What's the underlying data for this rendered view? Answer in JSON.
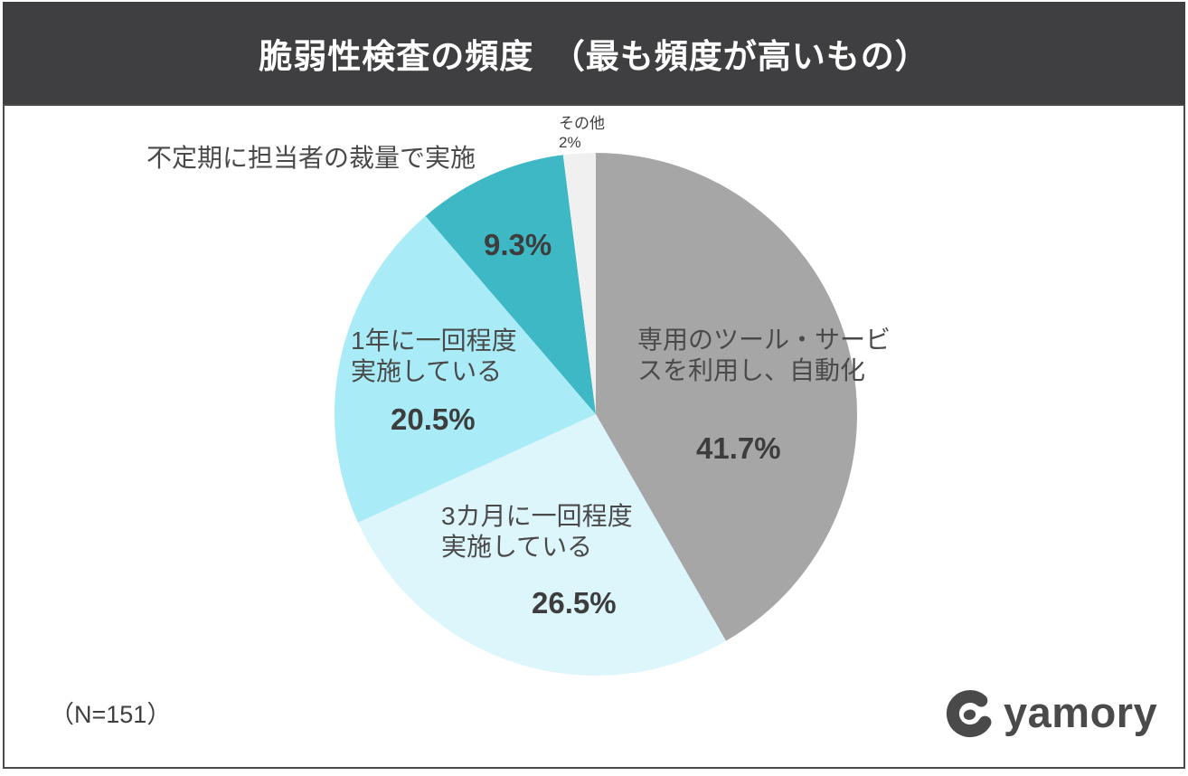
{
  "header": {
    "title": "脆弱性検査の頻度　（最も頻度が高いもの）",
    "bg_color": "#3f3f41",
    "text_color": "#ffffff"
  },
  "chart_data": {
    "type": "pie",
    "title": "脆弱性検査の頻度（最も頻度が高いもの）",
    "start_angle_deg": -90,
    "direction": "clockwise",
    "legend_position": "none",
    "sample_size": 151,
    "slices": [
      {
        "label": "専用のツール・サービスを利用し、自動化",
        "value": 41.7,
        "display": "41.7%",
        "color": "#a6a6a6"
      },
      {
        "label": "3カ月に一回程度実施している",
        "value": 26.5,
        "display": "26.5%",
        "color": "#ddf6fc"
      },
      {
        "label": "1年に一回程度実施している",
        "value": 20.5,
        "display": "20.5%",
        "color": "#a9ebf6"
      },
      {
        "label": "不定期に担当者の裁量で実施",
        "value": 9.3,
        "display": "9.3%",
        "color": "#3fb8c5"
      },
      {
        "label": "その他",
        "value": 2.0,
        "display": "2%",
        "color": "#f0f0f0"
      }
    ]
  },
  "labels": {
    "auto": "専用のツール・サービ\nスを利用し、自動化",
    "quarterly": "3カ月に一回程度\n実施している",
    "yearly": "1年に一回程度\n実施している",
    "adhoc": "不定期に担当者の裁量で実施",
    "other_callout": "その他\n2%"
  },
  "footer": {
    "n_label": "（N=151）"
  },
  "logo": {
    "text": "yamory",
    "color": "#4a4a4a"
  }
}
